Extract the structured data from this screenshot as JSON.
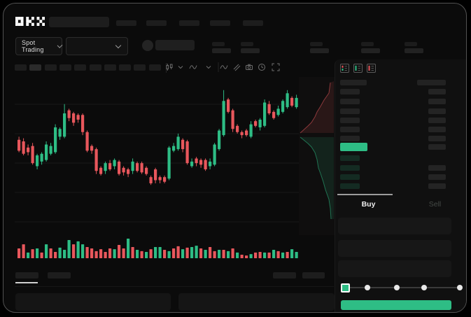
{
  "colors": {
    "green": "#2ebd85",
    "red": "#e8575c",
    "bg": "#0b0b0b",
    "panel": "#101010",
    "skeleton": "#1d1d1d",
    "skeleton_light": "#2b2b2b",
    "ob_bar_gray": "#232323",
    "bid_tint": "rgba(46,189,133,0.16)",
    "text": "#dcdcdc",
    "text_dim": "#454a47",
    "grid": "#191919",
    "slider_track": "#3a3a3a",
    "tab_indicator": "#9c9c9c"
  },
  "header": {
    "logo_text": "OKX",
    "nav_item_count": 5
  },
  "market_bar": {
    "market_type_label": "Spot Trading",
    "pair_selector_value": "",
    "ticker_stat_count": 5
  },
  "chart_toolbar": {
    "timeframe_button_count": 10,
    "active_timeframe_index": 1,
    "icons": [
      "candles",
      "caret",
      "wave",
      "caret",
      "divider",
      "wave",
      "compare",
      "camera",
      "clock",
      "expand"
    ]
  },
  "order_book": {
    "view_toggles": [
      "combined",
      "bids",
      "asks"
    ],
    "ask_row_count": 6,
    "bid_row_count": 4,
    "last_price_highlight_color": "#2ebd85"
  },
  "trade_panel": {
    "tabs": [
      {
        "label": "Buy",
        "active": true
      },
      {
        "label": "Sell",
        "active": false
      }
    ],
    "input_count": 3,
    "slider": {
      "stops": 5,
      "active_stop": 0
    },
    "submit_button_label": ""
  },
  "bottom_section": {
    "tab_count": 2,
    "active_tab_index": 0,
    "action_button_count": 2,
    "panel_count": 2
  },
  "chart_data": [
    {
      "type": "candlestick",
      "title": "",
      "xlabel": "",
      "ylabel": "",
      "note": "skeleton trading chart, no axis tick labels visible; prices normalized 0-100 of pane height",
      "grid": true,
      "candles": [
        [
          0,
          60,
          53,
          62,
          52
        ],
        [
          0,
          59,
          51,
          61,
          50
        ],
        [
          0,
          55,
          52,
          57,
          50
        ],
        [
          0,
          56,
          45,
          58,
          44
        ],
        [
          1,
          50,
          43,
          51,
          41
        ],
        [
          1,
          51,
          46,
          52,
          44
        ],
        [
          1,
          57,
          47,
          59,
          46
        ],
        [
          1,
          56,
          51,
          58,
          50
        ],
        [
          1,
          68,
          52,
          70,
          51
        ],
        [
          1,
          67,
          62,
          68,
          60
        ],
        [
          1,
          77,
          62,
          83,
          61
        ],
        [
          0,
          79,
          74,
          80,
          72
        ],
        [
          0,
          77,
          71,
          78,
          69
        ],
        [
          0,
          76,
          73,
          77,
          71
        ],
        [
          0,
          76,
          65,
          77,
          63
        ],
        [
          0,
          65,
          53,
          66,
          52
        ],
        [
          0,
          56,
          53,
          57,
          51
        ],
        [
          0,
          54,
          40,
          55,
          38
        ],
        [
          0,
          42,
          38,
          43,
          37
        ],
        [
          1,
          45,
          40,
          46,
          38
        ],
        [
          0,
          45,
          41,
          47,
          40
        ],
        [
          1,
          47,
          43,
          48,
          41
        ],
        [
          0,
          46,
          38,
          47,
          37
        ],
        [
          0,
          42,
          39,
          43,
          37
        ],
        [
          0,
          41,
          38,
          42,
          36
        ],
        [
          1,
          46,
          40,
          48,
          38
        ],
        [
          0,
          45,
          40,
          46,
          39
        ],
        [
          0,
          45,
          39,
          46,
          38
        ],
        [
          0,
          42,
          38,
          43,
          37
        ],
        [
          0,
          36,
          32,
          37,
          31
        ],
        [
          0,
          41,
          34,
          42,
          32
        ],
        [
          0,
          36,
          34,
          37,
          32
        ],
        [
          0,
          36,
          33,
          37,
          32
        ],
        [
          1,
          55,
          35,
          56,
          34
        ],
        [
          1,
          56,
          53,
          58,
          52
        ],
        [
          1,
          62,
          54,
          64,
          53
        ],
        [
          0,
          60,
          54,
          61,
          52
        ],
        [
          0,
          59,
          45,
          60,
          44
        ],
        [
          1,
          46,
          43,
          48,
          42
        ],
        [
          0,
          48,
          45,
          49,
          43
        ],
        [
          0,
          47,
          44,
          48,
          42
        ],
        [
          0,
          47,
          41,
          48,
          40
        ],
        [
          1,
          46,
          43,
          48,
          41
        ],
        [
          1,
          57,
          44,
          58,
          43
        ],
        [
          1,
          66,
          54,
          67,
          53
        ],
        [
          1,
          85,
          63,
          92,
          62
        ],
        [
          0,
          86,
          78,
          87,
          77
        ],
        [
          0,
          79,
          67,
          80,
          65
        ],
        [
          0,
          69,
          65,
          70,
          64
        ],
        [
          0,
          65,
          63,
          66,
          61
        ],
        [
          0,
          66,
          63,
          67,
          62
        ],
        [
          1,
          70,
          62,
          72,
          61
        ],
        [
          0,
          72,
          69,
          73,
          68
        ],
        [
          1,
          73,
          68,
          74,
          66
        ],
        [
          1,
          84,
          69,
          86,
          68
        ],
        [
          0,
          83,
          77,
          85,
          76
        ],
        [
          0,
          78,
          74,
          79,
          73
        ],
        [
          1,
          80,
          76,
          82,
          75
        ],
        [
          1,
          85,
          78,
          86,
          77
        ],
        [
          1,
          90,
          81,
          92,
          80
        ],
        [
          0,
          87,
          82,
          88,
          81
        ],
        [
          1,
          87,
          81,
          89,
          80
        ]
      ],
      "candle_format": "[direction 1=up 0=down, body_high, body_low, wick_high, wick_low]"
    },
    {
      "type": "bar",
      "name": "volume",
      "note": "values normalized 0-100",
      "values": [
        50,
        71,
        29,
        46,
        50,
        29,
        71,
        50,
        32,
        54,
        43,
        93,
        71,
        86,
        71,
        57,
        50,
        36,
        46,
        32,
        50,
        46,
        68,
        50,
        100,
        57,
        43,
        36,
        32,
        46,
        57,
        57,
        43,
        36,
        50,
        61,
        46,
        54,
        57,
        64,
        50,
        43,
        57,
        36,
        43,
        43,
        36,
        50,
        29,
        18,
        14,
        21,
        29,
        32,
        29,
        29,
        43,
        36,
        29,
        32,
        46,
        32
      ],
      "colors": [
        0,
        0,
        1,
        0,
        1,
        0,
        1,
        0,
        0,
        1,
        1,
        1,
        0,
        1,
        1,
        0,
        0,
        0,
        0,
        0,
        0,
        1,
        0,
        0,
        1,
        0,
        1,
        0,
        1,
        0,
        1,
        1,
        0,
        1,
        0,
        0,
        1,
        0,
        1,
        1,
        0,
        1,
        0,
        0,
        1,
        0,
        1,
        0,
        1,
        0,
        0,
        1,
        0,
        0,
        1,
        0,
        1,
        0,
        1,
        0,
        1,
        1
      ]
    },
    {
      "type": "area",
      "name": "depth-preview",
      "orientation": "vertical",
      "note": "boundary points in local 50x224 px coords of the strip",
      "ask_boundary": [
        [
          45,
          8
        ],
        [
          43,
          23
        ],
        [
          36,
          33
        ],
        [
          31,
          42
        ],
        [
          26,
          50
        ],
        [
          23,
          57
        ],
        [
          18,
          65
        ],
        [
          13,
          70
        ],
        [
          2,
          80
        ]
      ],
      "bid_boundary": [
        [
          2,
          86
        ],
        [
          13,
          95
        ],
        [
          18,
          100
        ],
        [
          23,
          108
        ],
        [
          26,
          118
        ],
        [
          28,
          130
        ],
        [
          31,
          138
        ],
        [
          35,
          150
        ],
        [
          38,
          161
        ],
        [
          43,
          175
        ],
        [
          45,
          188
        ],
        [
          46,
          203
        ]
      ]
    }
  ]
}
